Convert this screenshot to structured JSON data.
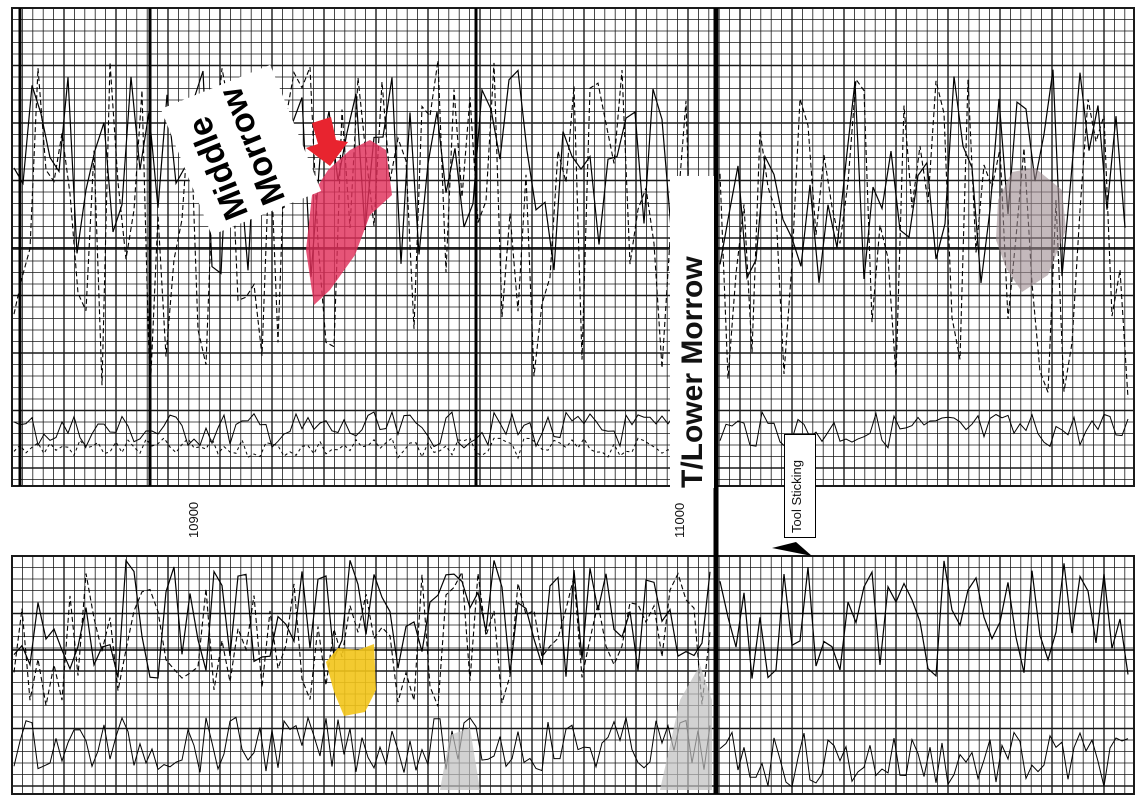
{
  "annotations": {
    "middle_morrow_line1": "Middle",
    "middle_morrow_line2": "Morrow",
    "lower_morrow": "T/Lower Morrow",
    "tool_sticking": "Tool Sticking"
  },
  "depth_labels": [
    "10900",
    "11000"
  ],
  "colors": {
    "grid": "#1a1a1a",
    "highlight_red": "#e0305a",
    "highlight_yellow": "#f2c419",
    "arrow": "#e8242f",
    "shade": "#bfbfbf"
  },
  "icons": {
    "arrow": "down-arrow-icon",
    "pointer": "triangle-pointer-icon"
  }
}
